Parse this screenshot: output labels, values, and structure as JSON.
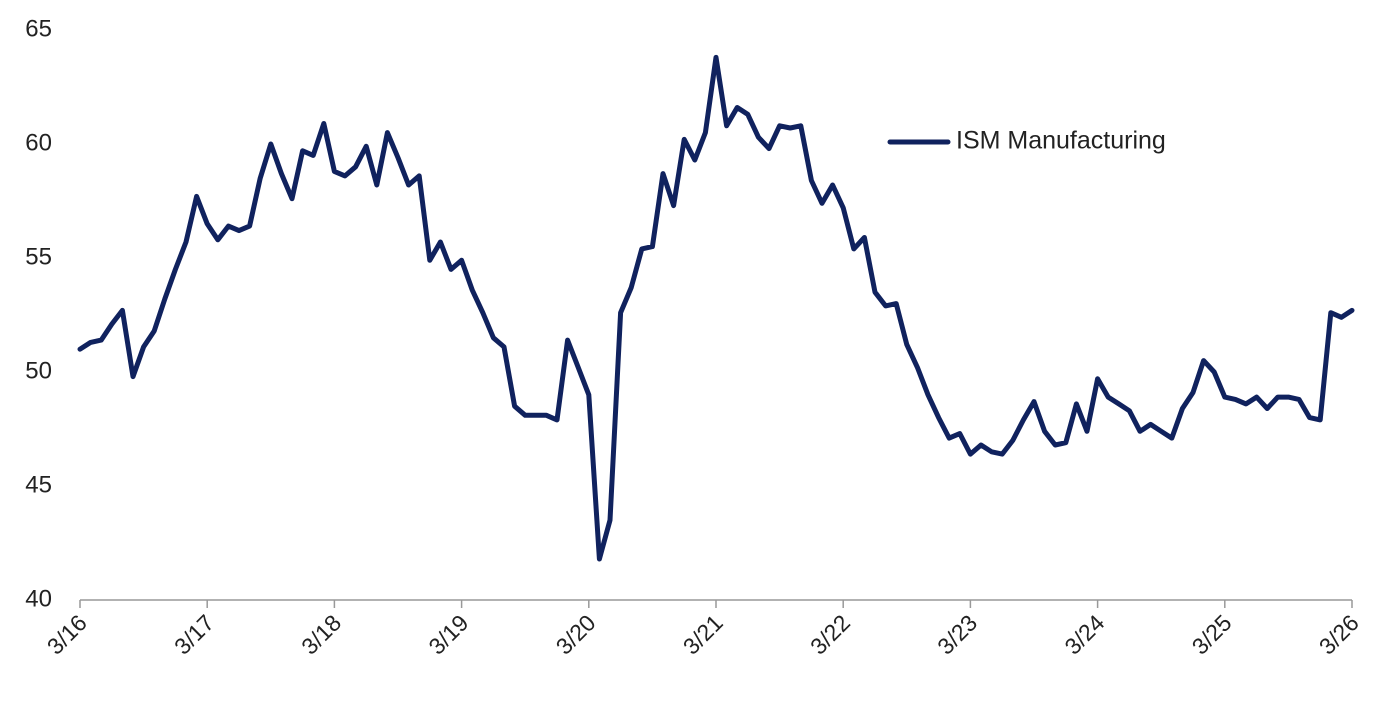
{
  "chart_data": {
    "type": "line",
    "categories": [
      "3/16",
      null,
      null,
      null,
      null,
      null,
      null,
      null,
      null,
      null,
      null,
      null,
      "3/17",
      null,
      null,
      null,
      null,
      null,
      null,
      null,
      null,
      null,
      null,
      null,
      "3/18",
      null,
      null,
      null,
      null,
      null,
      null,
      null,
      null,
      null,
      null,
      null,
      "3/19",
      null,
      null,
      null,
      null,
      null,
      null,
      null,
      null,
      null,
      null,
      null,
      "3/20",
      null,
      null,
      null,
      null,
      null,
      null,
      null,
      null,
      null,
      null,
      null,
      "3/21",
      null,
      null,
      null,
      null,
      null,
      null,
      null,
      null,
      null,
      null,
      null,
      "3/22",
      null,
      null,
      null,
      null,
      null,
      null,
      null,
      null,
      null,
      null,
      null,
      "3/23",
      null,
      null,
      null,
      null,
      null,
      null,
      null,
      null,
      null,
      null,
      null,
      "3/24",
      null,
      null,
      null,
      null,
      null,
      null,
      null,
      null,
      null,
      null,
      null,
      "3/25",
      null,
      null,
      null,
      null,
      null,
      null,
      null,
      null,
      null,
      null,
      null,
      "3/26"
    ],
    "series": [
      {
        "name": "ISM Manufacturing",
        "color": "#10225e",
        "values": [
          51.0,
          51.3,
          51.4,
          52.1,
          52.7,
          49.8,
          51.1,
          51.8,
          53.2,
          54.5,
          55.7,
          57.7,
          56.5,
          55.8,
          56.4,
          56.2,
          56.4,
          58.5,
          60.0,
          58.7,
          57.6,
          59.7,
          59.5,
          60.9,
          58.8,
          58.6,
          59.0,
          59.9,
          58.2,
          60.5,
          59.4,
          58.2,
          58.6,
          54.9,
          55.7,
          54.5,
          54.9,
          53.6,
          52.6,
          51.5,
          51.1,
          48.5,
          48.1,
          48.1,
          48.1,
          47.9,
          51.4,
          50.2,
          49.0,
          41.8,
          43.5,
          52.6,
          53.7,
          55.4,
          55.5,
          58.7,
          57.3,
          60.2,
          59.3,
          60.5,
          63.8,
          60.8,
          61.6,
          61.3,
          60.3,
          59.8,
          60.8,
          60.7,
          60.8,
          58.4,
          57.4,
          58.2,
          57.2,
          55.4,
          55.9,
          53.5,
          52.9,
          53.0,
          51.2,
          50.2,
          49.0,
          48.0,
          47.1,
          47.3,
          46.4,
          46.8,
          46.5,
          46.4,
          47.0,
          47.9,
          48.7,
          47.4,
          46.8,
          46.9,
          48.6,
          47.4,
          49.7,
          48.9,
          48.6,
          48.3,
          47.4,
          47.7,
          47.4,
          47.1,
          48.4,
          49.1,
          50.5,
          50.0,
          48.9,
          48.8,
          48.6,
          48.9,
          48.4,
          48.9,
          48.9,
          48.8,
          48.0,
          47.9,
          52.6,
          52.4,
          52.7
        ]
      }
    ],
    "ylim": [
      40,
      65
    ],
    "yticks": [
      40,
      45,
      50,
      55,
      60,
      65
    ]
  }
}
